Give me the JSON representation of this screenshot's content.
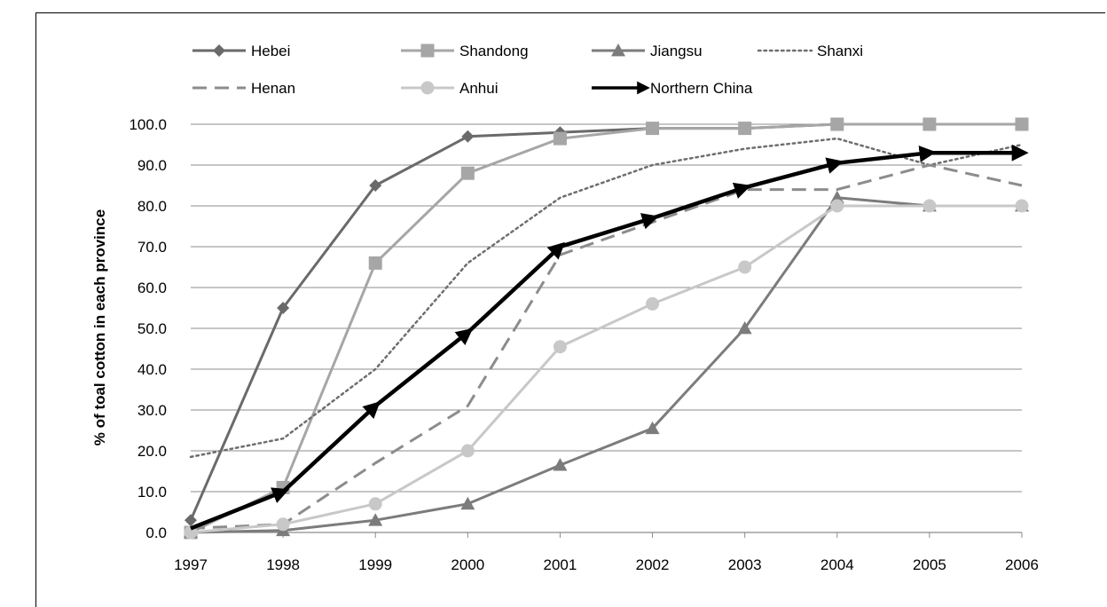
{
  "chart_data": {
    "type": "line",
    "title": "",
    "xlabel": "",
    "ylabel": "% of toal cotton in each province",
    "x": [
      "1997",
      "1998",
      "1999",
      "2000",
      "2001",
      "2002",
      "2003",
      "2004",
      "2005",
      "2006"
    ],
    "ylim": [
      0,
      100
    ],
    "yticks": [
      "0.0",
      "10.0",
      "20.0",
      "30.0",
      "40.0",
      "50.0",
      "60.0",
      "70.0",
      "80.0",
      "90.0",
      "100.0"
    ],
    "grid": "horizontal",
    "legend_position": "top",
    "series": [
      {
        "name": "Hebei",
        "color": "#6a6a6a",
        "marker": "diamond",
        "dash": "solid",
        "width": 3,
        "values": [
          3,
          55,
          85,
          97,
          98,
          99,
          99,
          100,
          100,
          100
        ]
      },
      {
        "name": "Shandong",
        "color": "#a6a6a6",
        "marker": "square",
        "dash": "solid",
        "width": 3,
        "values": [
          0,
          11,
          66,
          88,
          96.5,
          99,
          99,
          100,
          100,
          100
        ]
      },
      {
        "name": "Jiangsu",
        "color": "#7c7c7c",
        "marker": "triangle",
        "dash": "solid",
        "width": 3,
        "values": [
          0,
          0.5,
          3,
          7,
          16.5,
          25.5,
          50,
          82,
          80,
          80
        ]
      },
      {
        "name": "Shanxi",
        "color": "#6e6e6e",
        "marker": "none",
        "dash": "dotted",
        "width": 2.5,
        "values": [
          18.5,
          23,
          40,
          66,
          82,
          90,
          94,
          96.5,
          90,
          95
        ]
      },
      {
        "name": "Henan",
        "color": "#8c8c8c",
        "marker": "none",
        "dash": "dashed",
        "width": 3,
        "values": [
          1,
          2,
          17,
          31,
          68,
          76,
          84,
          84,
          90,
          85
        ]
      },
      {
        "name": "Anhui",
        "color": "#c8c8c8",
        "marker": "circle",
        "dash": "solid",
        "width": 3,
        "values": [
          0,
          2,
          7,
          20,
          45.5,
          56,
          65,
          80,
          80,
          80
        ]
      },
      {
        "name": "Northern China",
        "color": "#000000",
        "marker": "arrow",
        "dash": "solid",
        "width": 4.5,
        "values": [
          1,
          10,
          31,
          49,
          70,
          77,
          84.5,
          90.5,
          93,
          93
        ]
      }
    ]
  }
}
